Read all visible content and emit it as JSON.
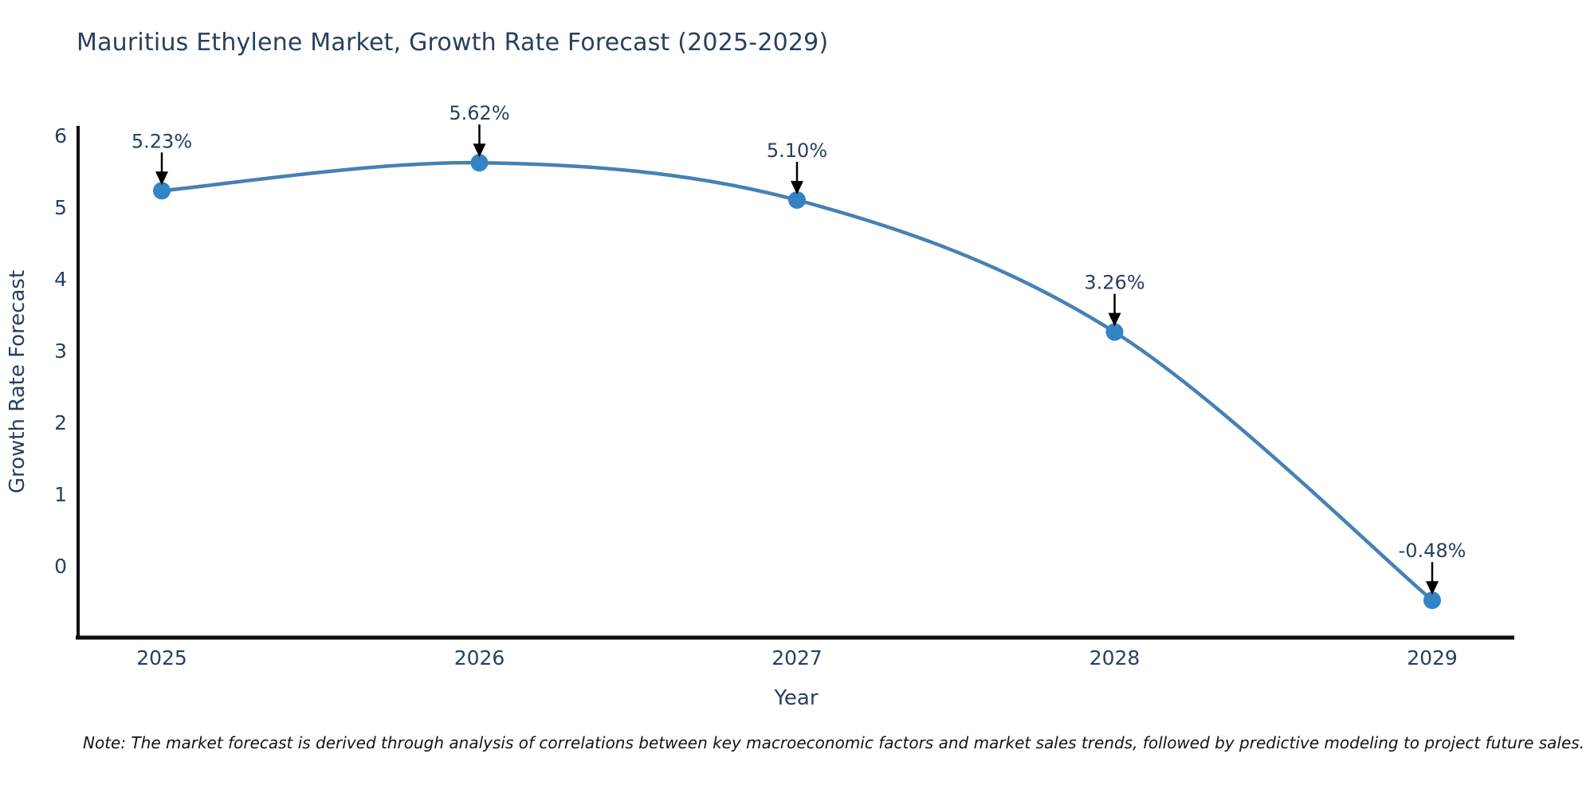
{
  "title": "Mauritius Ethylene Market, Growth Rate Forecast (2025-2029)",
  "note": "Note: The market forecast is derived through analysis of correlations between key macroeconomic factors and market sales trends, followed by predictive modeling to project future sales.",
  "chart_data": {
    "type": "line",
    "line_shape": "spline",
    "categories": [
      2025,
      2026,
      2027,
      2028,
      2029
    ],
    "values": [
      5.23,
      5.62,
      5.1,
      3.26,
      -0.48
    ],
    "point_labels": [
      "5.23%",
      "5.62%",
      "5.10%",
      "3.26%",
      "-0.48%"
    ],
    "title": "Mauritius Ethylene Market, Growth Rate Forecast (2025-2029)",
    "xlabel": "Year",
    "ylabel": "Growth Rate Forecast",
    "yticks": [
      0,
      1,
      2,
      3,
      4,
      5,
      6
    ],
    "ylim": [
      -1.05,
      6.15
    ],
    "grid": false,
    "legend": "none",
    "colors": {
      "line": "#4681b4",
      "marker": "#3484c4",
      "axis": "#0d0d0d",
      "tick_text": "#2a3f5f",
      "annotation_text": "#2a3f5f",
      "annotation_arrow": "#000000",
      "title_text": "#2a3f5f"
    }
  }
}
